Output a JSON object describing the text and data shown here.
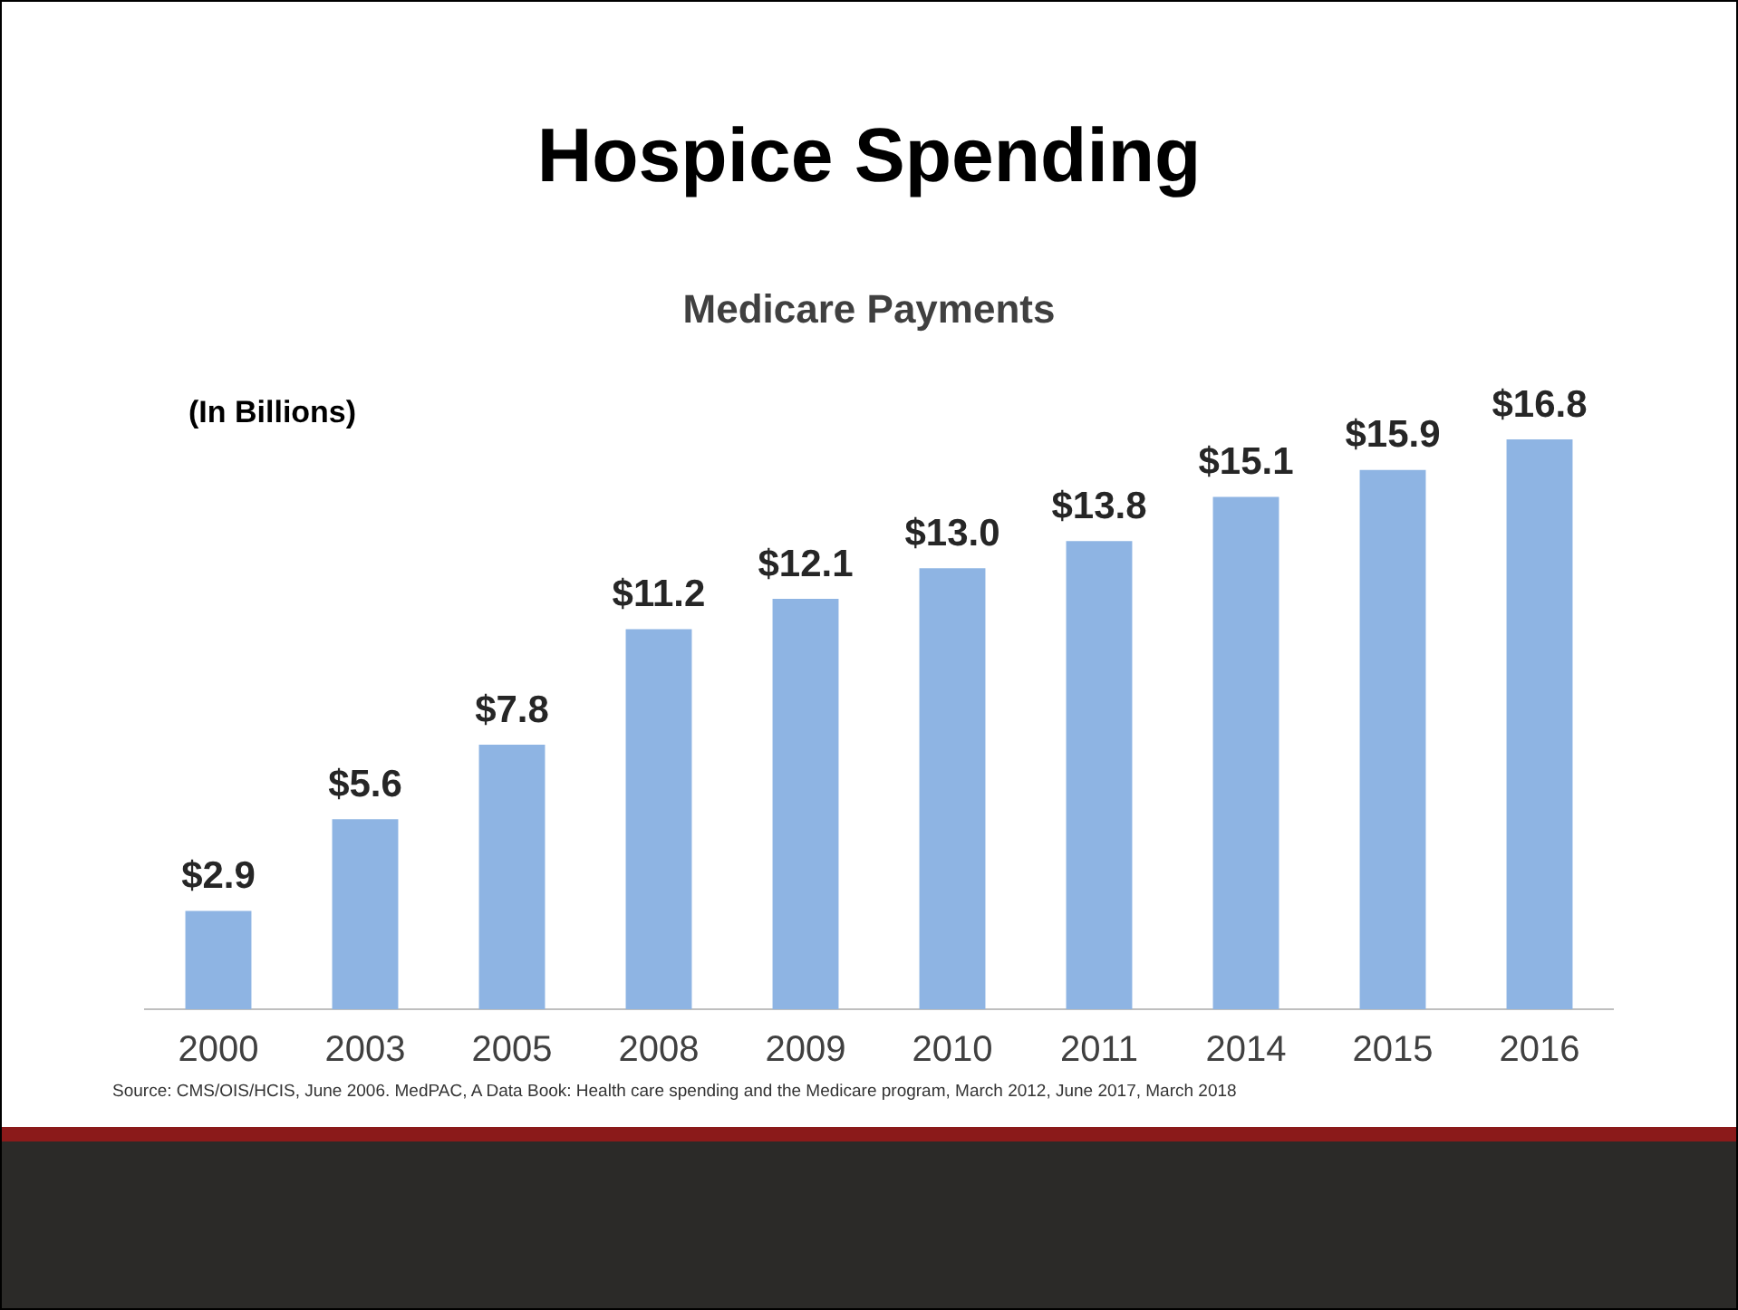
{
  "chart_data": {
    "type": "bar",
    "title": "Hospice Spending",
    "subtitle": "Medicare Payments",
    "ylabel": "(In Billions)",
    "categories": [
      "2000",
      "2003",
      "2005",
      "2008",
      "2009",
      "2010",
      "2011",
      "2014",
      "2015",
      "2016"
    ],
    "values": [
      2.9,
      5.6,
      7.8,
      11.2,
      12.1,
      13.0,
      13.8,
      15.1,
      15.9,
      16.8
    ],
    "value_labels": [
      "$2.9",
      "$5.6",
      "$7.8",
      "$11.2",
      "$12.1",
      "$13.0",
      "$13.8",
      "$15.1",
      "$15.9",
      "$16.8"
    ],
    "color": "#8eb4e3",
    "grid": false,
    "legend": false,
    "tick_labels": "x",
    "annotations": [
      "Source: CMS/OIS/HCIS, June 2006. MedPAC, A Data Book: Health care spending and the Medicare program, March 2012,  June 2017, March 2018"
    ]
  }
}
